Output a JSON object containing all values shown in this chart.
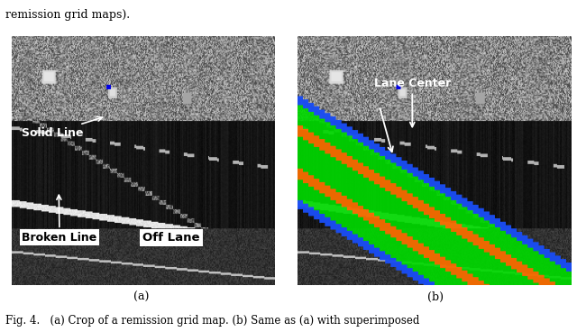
{
  "title_top": "remission grid maps).",
  "caption": "Fig. 4.   (a) Crop of a remission grid map. (b) Same as (a) with superimposed",
  "label_a": "(a)",
  "label_b": "(b)",
  "bg_color": "#ffffff",
  "fig_width": 6.4,
  "fig_height": 3.68
}
